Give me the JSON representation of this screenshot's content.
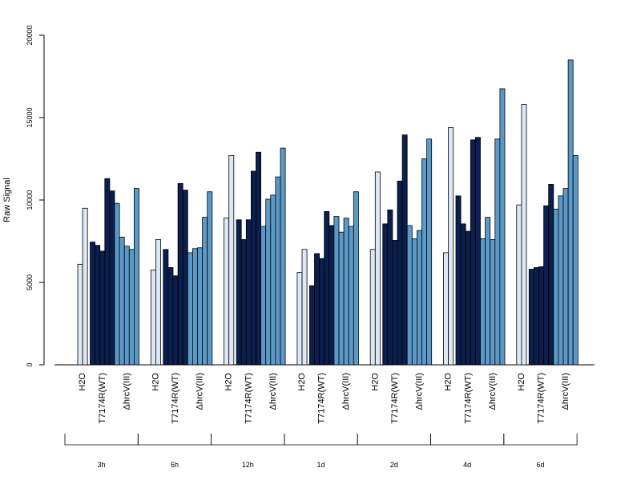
{
  "chart_data": {
    "type": "bar",
    "title": "",
    "xlabel": "",
    "ylabel": "Raw Signal",
    "ylim": [
      0,
      20000
    ],
    "yticks": [
      0,
      5000,
      10000,
      15000,
      20000
    ],
    "grid": false,
    "legend": "none",
    "conditions": [
      {
        "label": "H2O",
        "color": "#dce8f5"
      },
      {
        "label": "T7174R(WT)",
        "color": "#0a1f4e"
      },
      {
        "label": "ΔhrcV(III)",
        "color": "#5b9ac8"
      }
    ],
    "groups": [
      {
        "label": "3h",
        "bars": [
          [
            6100,
            9500
          ],
          [
            7450,
            7250,
            6900,
            11300,
            10550
          ],
          [
            9800,
            7750,
            7200,
            7000,
            10700
          ]
        ]
      },
      {
        "label": "6h",
        "bars": [
          [
            5750,
            7600
          ],
          [
            7000,
            5900,
            5400,
            11000,
            10600
          ],
          [
            6800,
            7050,
            7100,
            8950,
            10500
          ]
        ]
      },
      {
        "label": "12h",
        "bars": [
          [
            8900,
            12700
          ],
          [
            8800,
            7600,
            8800,
            11750,
            12900
          ],
          [
            8400,
            10050,
            10300,
            11400,
            13150
          ]
        ]
      },
      {
        "label": "1d",
        "bars": [
          [
            5600,
            7000
          ],
          [
            4800,
            6750,
            6450,
            9300,
            8450
          ],
          [
            9000,
            8050,
            8900,
            8400,
            10500
          ]
        ]
      },
      {
        "label": "2d",
        "bars": [
          [
            7000,
            11700
          ],
          [
            8550,
            9400,
            7550,
            11150,
            13950
          ],
          [
            8450,
            7650,
            8150,
            12500,
            13700
          ]
        ]
      },
      {
        "label": "4d",
        "bars": [
          [
            6800,
            14400
          ],
          [
            10250,
            8550,
            8100,
            13650,
            13800
          ],
          [
            7650,
            8950,
            7600,
            13700,
            16750
          ]
        ]
      },
      {
        "label": "6d",
        "bars": [
          [
            9700,
            15800
          ],
          [
            5800,
            5900,
            5950,
            9650,
            10950
          ],
          [
            9450,
            10250,
            10700,
            18500,
            12700
          ]
        ]
      }
    ]
  }
}
